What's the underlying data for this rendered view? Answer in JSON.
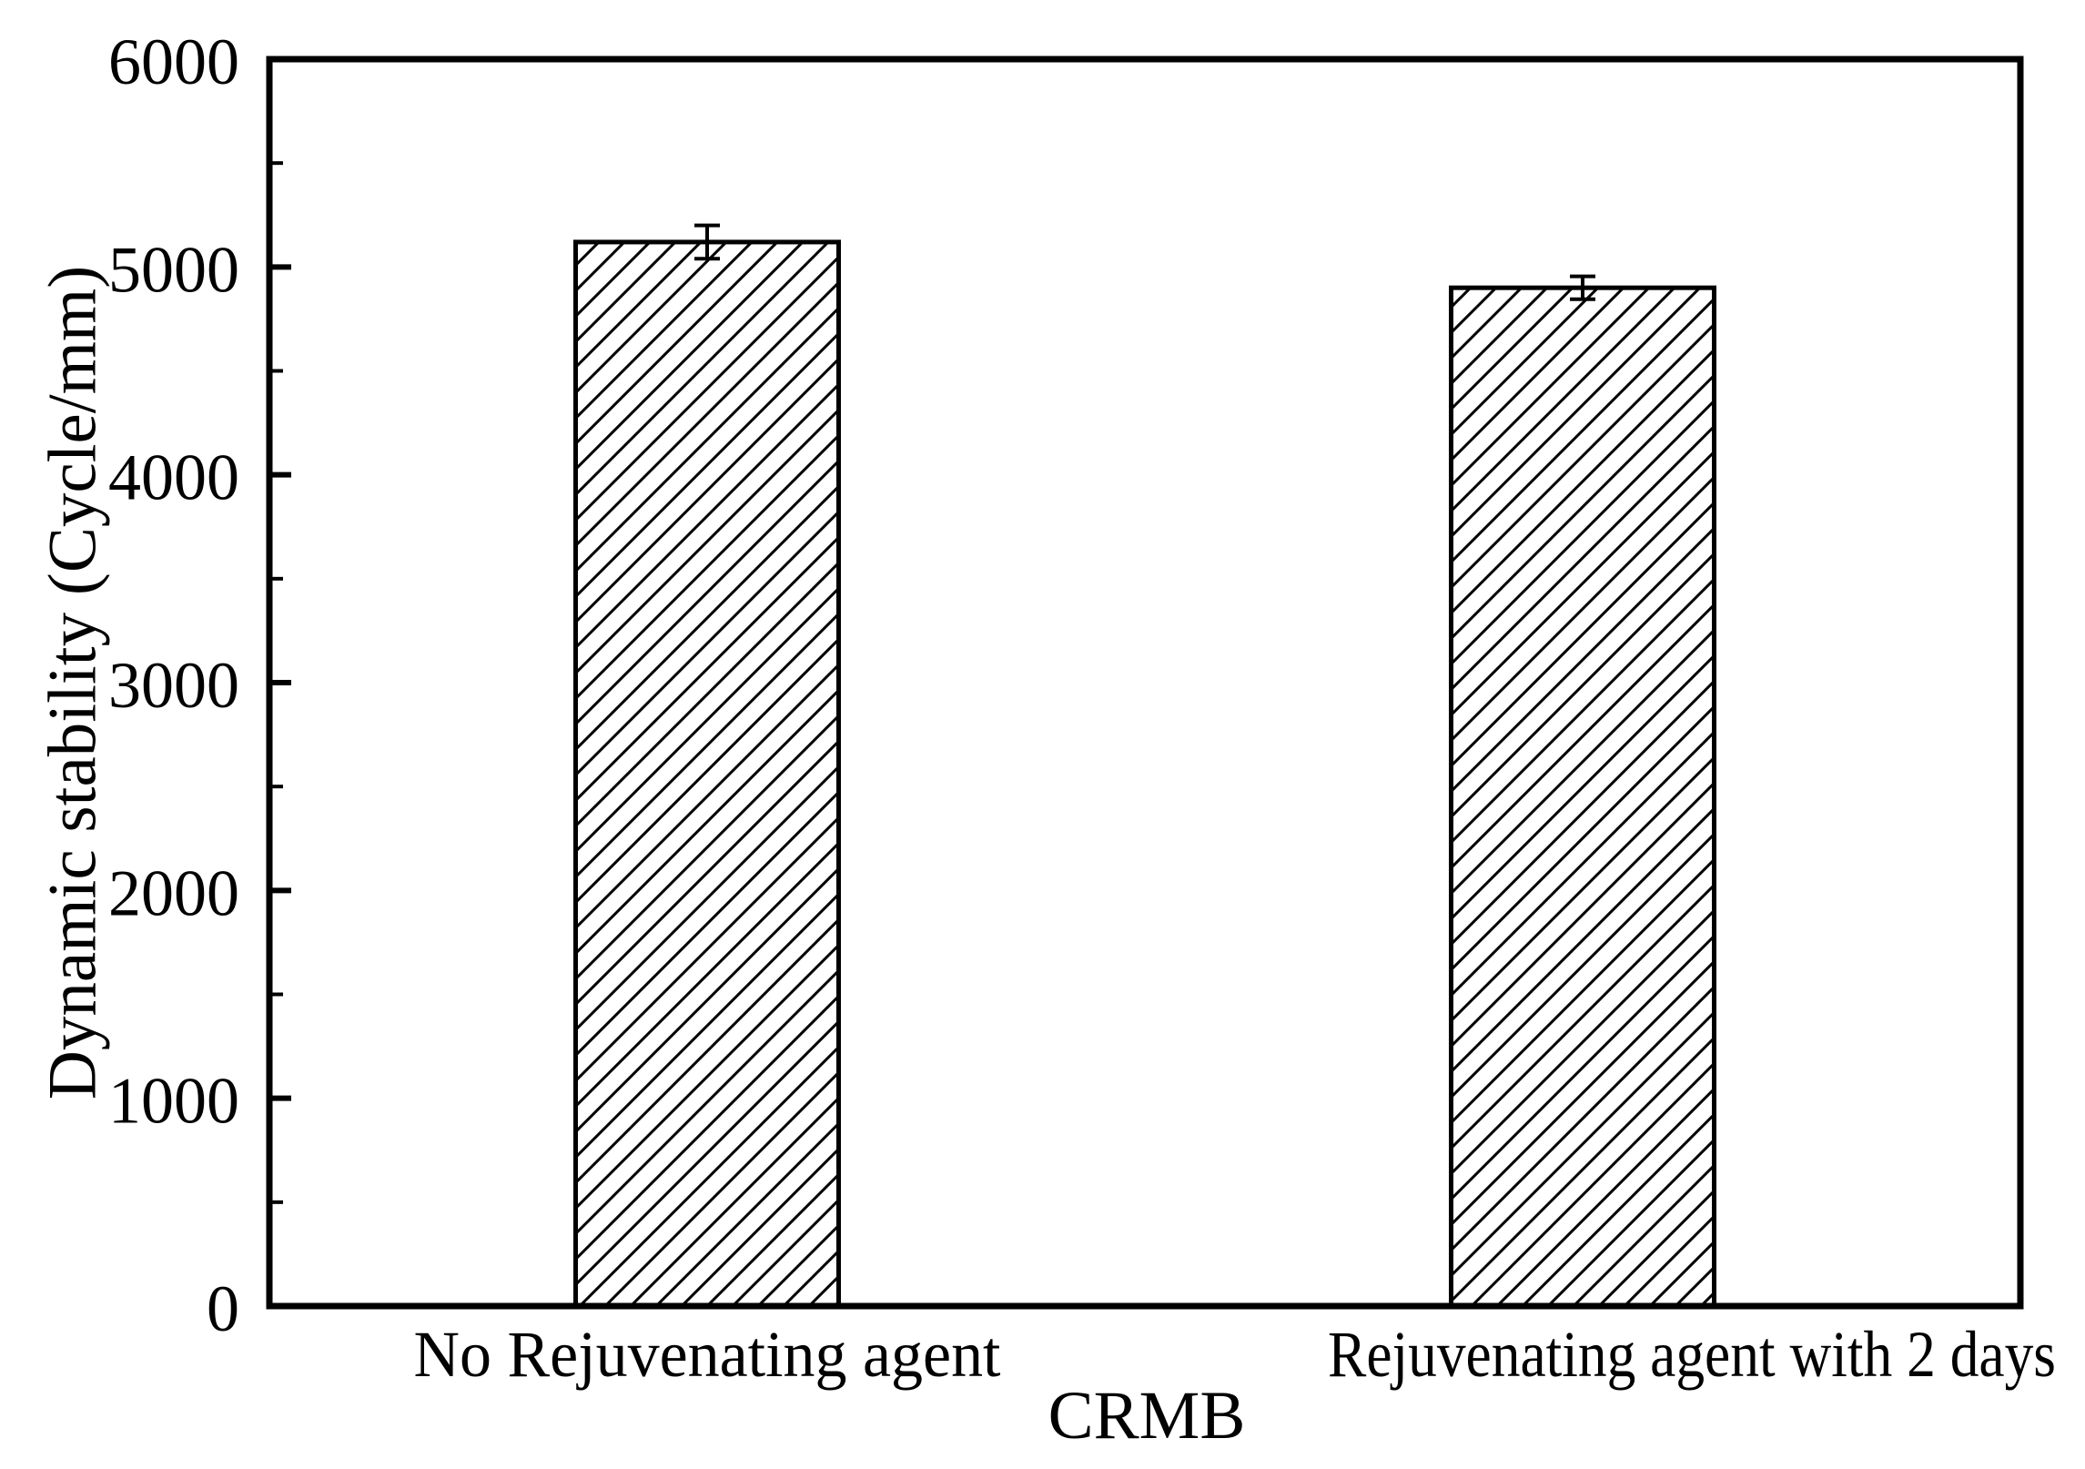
{
  "chart_data": {
    "type": "bar",
    "title": "",
    "xlabel": "CRMB",
    "ylabel": "Dynamic stability (Cycle/mm)",
    "categories": [
      "No Rejuvenating agent",
      "Rejuvenating agent with 2 days"
    ],
    "values": [
      5120,
      4900
    ],
    "errors": [
      80,
      55
    ],
    "ylim": [
      0,
      6000
    ],
    "yticks": [
      0,
      1000,
      2000,
      3000,
      4000,
      5000,
      6000
    ],
    "y_minor_tick_interval": 500,
    "grid": false,
    "legend": false,
    "bar_fill_style": "diagonal-hatch",
    "bar_outline_color": "#000000",
    "background_color": "#ffffff"
  }
}
